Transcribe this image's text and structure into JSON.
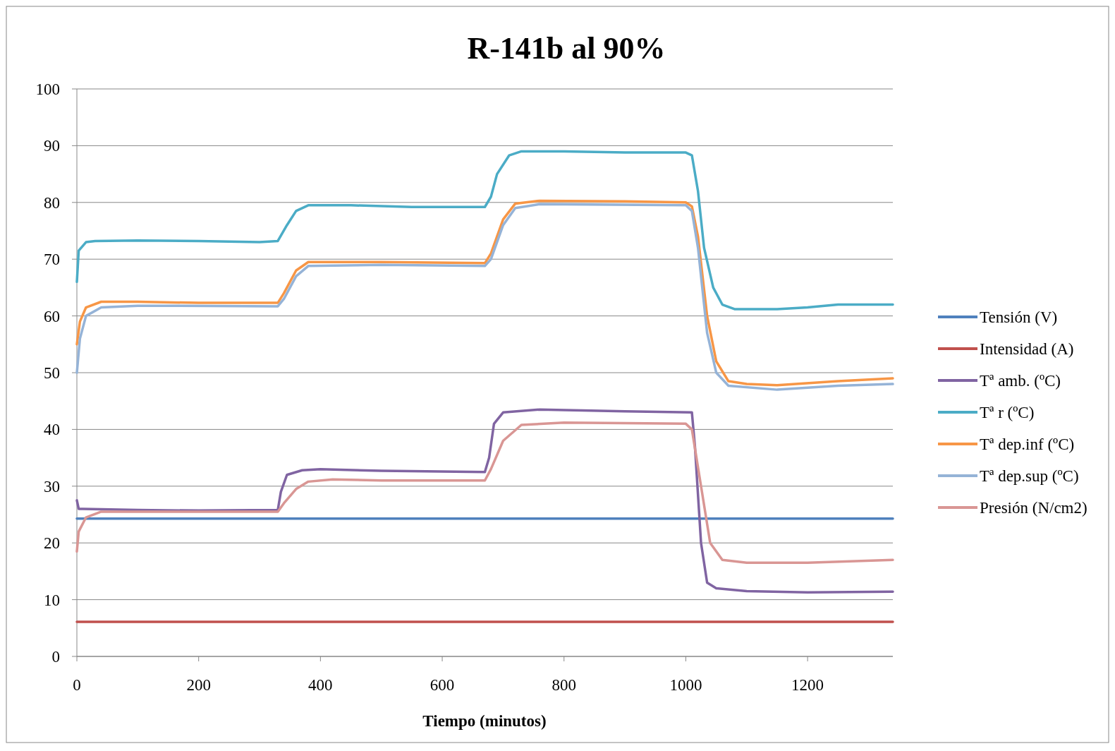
{
  "chart_data": {
    "type": "line",
    "title": "R-141b al 90%",
    "xlabel": "Tiempo (minutos)",
    "xlim": [
      0,
      1340
    ],
    "xticks": [
      0,
      200,
      400,
      600,
      800,
      1000,
      1200
    ],
    "ylim": [
      0,
      100
    ],
    "yticks": [
      0,
      10,
      20,
      30,
      40,
      50,
      60,
      70,
      80,
      90,
      100
    ],
    "grid": "y",
    "legend": "right",
    "marker": "none",
    "line_style": "solid",
    "series": [
      {
        "name": "Tensión (V)",
        "color": "#4f81bd",
        "x": [
          0,
          1340
        ],
        "values": [
          24.3,
          24.3
        ]
      },
      {
        "name": "Intensidad (A)",
        "color": "#c0504d",
        "x": [
          0,
          1340
        ],
        "values": [
          6.1,
          6.1
        ]
      },
      {
        "name": "Tª amb. (ºC)",
        "color": "#8064a2",
        "x": [
          0,
          3,
          10,
          100,
          200,
          330,
          335,
          345,
          370,
          400,
          500,
          670,
          677,
          685,
          700,
          760,
          900,
          1010,
          1015,
          1025,
          1035,
          1050,
          1100,
          1200,
          1340
        ],
        "values": [
          27.5,
          26,
          26,
          25.8,
          25.7,
          25.8,
          29,
          32,
          32.8,
          33,
          32.7,
          32.5,
          35,
          41,
          43,
          43.5,
          43.2,
          43,
          37,
          20,
          13,
          12,
          11.5,
          11.3,
          11.4
        ]
      },
      {
        "name": "Tª r (ºC)",
        "color": "#4bacc6",
        "x": [
          0,
          3,
          15,
          30,
          100,
          200,
          300,
          330,
          345,
          360,
          380,
          450,
          550,
          670,
          680,
          690,
          710,
          730,
          800,
          900,
          1000,
          1010,
          1020,
          1030,
          1045,
          1060,
          1080,
          1150,
          1200,
          1250,
          1340
        ],
        "values": [
          66,
          71.5,
          73,
          73.2,
          73.3,
          73.2,
          73,
          73.2,
          76,
          78.5,
          79.5,
          79.5,
          79.2,
          79.2,
          81,
          85,
          88.3,
          89,
          89,
          88.8,
          88.8,
          88.3,
          82,
          72,
          65,
          62,
          61.2,
          61.2,
          61.5,
          62,
          62
        ]
      },
      {
        "name": "Tª dep.inf (ºC)",
        "color": "#f79646",
        "x": [
          0,
          5,
          15,
          40,
          100,
          200,
          330,
          340,
          360,
          380,
          500,
          670,
          680,
          700,
          720,
          760,
          900,
          1000,
          1010,
          1020,
          1035,
          1050,
          1070,
          1100,
          1150,
          1250,
          1340
        ],
        "values": [
          55,
          59,
          61.5,
          62.5,
          62.5,
          62.3,
          62.3,
          64,
          68,
          69.5,
          69.5,
          69.3,
          71,
          77,
          79.8,
          80.3,
          80.2,
          80,
          79.3,
          74,
          60,
          52,
          48.5,
          48,
          47.8,
          48.5,
          49
        ]
      },
      {
        "name": "Tª dep.sup (ºC)",
        "color": "#95b3d7",
        "x": [
          0,
          5,
          15,
          40,
          100,
          330,
          340,
          360,
          380,
          500,
          670,
          680,
          700,
          720,
          760,
          1000,
          1010,
          1020,
          1035,
          1050,
          1070,
          1150,
          1250,
          1340
        ],
        "values": [
          50,
          56,
          60,
          61.5,
          61.8,
          61.7,
          63,
          67,
          68.8,
          69,
          68.8,
          70,
          76,
          79,
          79.7,
          79.5,
          78.5,
          72,
          57,
          50,
          47.7,
          47,
          47.7,
          48
        ]
      },
      {
        "name": "Presión (N/cm2)",
        "color": "#d99694",
        "x": [
          0,
          3,
          15,
          40,
          200,
          330,
          340,
          360,
          380,
          420,
          500,
          670,
          680,
          700,
          730,
          800,
          1000,
          1010,
          1025,
          1040,
          1060,
          1100,
          1200,
          1340
        ],
        "values": [
          18.5,
          22,
          24.5,
          25.5,
          25.5,
          25.5,
          27,
          29.5,
          30.8,
          31.2,
          31,
          31,
          33,
          38,
          40.8,
          41.2,
          41,
          40,
          30,
          20,
          17,
          16.5,
          16.5,
          17
        ]
      }
    ]
  }
}
